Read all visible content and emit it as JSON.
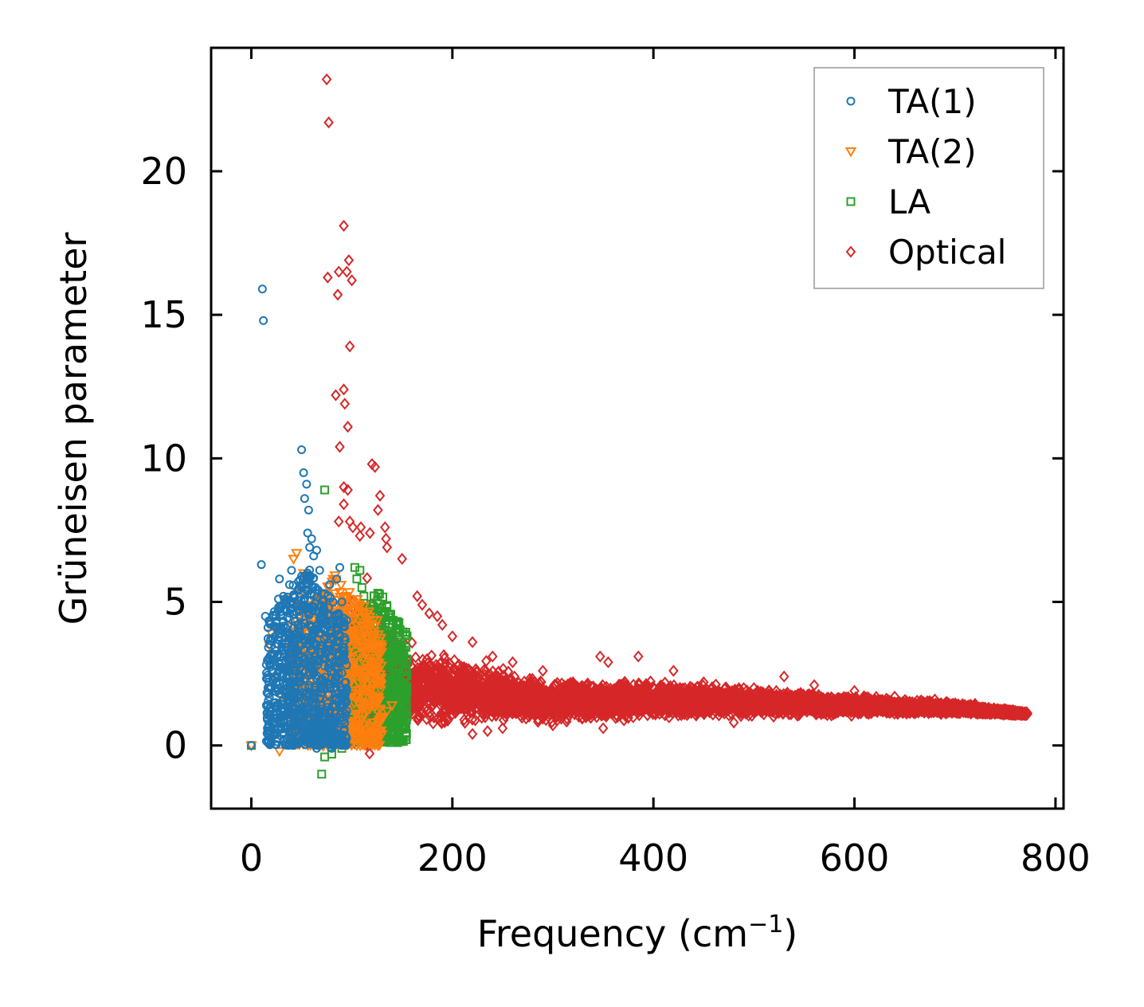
{
  "chart_data": {
    "type": "scatter",
    "xlabel": "Frequency (cm",
    "xlabel_sup": "−1",
    "xlabel_close": ")",
    "ylabel": "Grüneisen parameter",
    "xlim": [
      -40,
      808
    ],
    "ylim": [
      -2.2,
      24.3
    ],
    "xticks": [
      0,
      200,
      400,
      600,
      800
    ],
    "xtick_labels": [
      "0",
      "200",
      "400",
      "600",
      "800"
    ],
    "yticks": [
      0,
      5,
      10,
      15,
      20
    ],
    "ytick_labels": [
      "0",
      "5",
      "10",
      "15",
      "20"
    ],
    "grid": false,
    "legend_position": "top-right",
    "series": [
      {
        "name": "TA(1)",
        "marker": "circle",
        "color": "#1f77b4",
        "cluster": {
          "x_range": [
            15,
            95
          ],
          "y_range": [
            0.0,
            6.3
          ],
          "count": 900
        },
        "points": [
          [
            0,
            0
          ],
          [
            11,
            15.9
          ],
          [
            12,
            14.8
          ],
          [
            10,
            6.3
          ],
          [
            14,
            4.5
          ],
          [
            15,
            1.4
          ],
          [
            18,
            2.0
          ],
          [
            20,
            0.3
          ],
          [
            25,
            2.2
          ],
          [
            27,
            5.1
          ],
          [
            28,
            5.8
          ],
          [
            30,
            3.3
          ],
          [
            32,
            1.0
          ],
          [
            34,
            4.1
          ],
          [
            35,
            2.6
          ],
          [
            38,
            5.6
          ],
          [
            40,
            6.1
          ],
          [
            42,
            3.6
          ],
          [
            45,
            3.9
          ],
          [
            47,
            1.2
          ],
          [
            48,
            2.5
          ],
          [
            50,
            5.9
          ],
          [
            50,
            10.3
          ],
          [
            52,
            9.5
          ],
          [
            53,
            8.6
          ],
          [
            55,
            9.1
          ],
          [
            56,
            7.4
          ],
          [
            57,
            8.2
          ],
          [
            58,
            6.9
          ],
          [
            60,
            7.2
          ],
          [
            62,
            6.6
          ],
          [
            65,
            6.8
          ],
          [
            68,
            6.1
          ],
          [
            70,
            5.3
          ],
          [
            72,
            4.8
          ],
          [
            75,
            4.2
          ],
          [
            78,
            5.6
          ],
          [
            80,
            3.1
          ],
          [
            83,
            4.5
          ],
          [
            85,
            5.8
          ],
          [
            88,
            6.2
          ],
          [
            90,
            5.0
          ],
          [
            92,
            3.4
          ],
          [
            94,
            2.2
          ],
          [
            95,
            1.2
          ],
          [
            80,
            -0.1
          ],
          [
            65,
            -0.1
          ]
        ]
      },
      {
        "name": "TA(2)",
        "marker": "triangle-down",
        "color": "#ff7f0e",
        "cluster": {
          "x_range": [
            40,
            130
          ],
          "y_range": [
            0.0,
            6.0
          ],
          "count": 900
        },
        "points": [
          [
            0,
            0
          ],
          [
            18,
            3.5
          ],
          [
            20,
            3.9
          ],
          [
            25,
            2.4
          ],
          [
            27,
            0.8
          ],
          [
            28,
            -0.2
          ],
          [
            30,
            1.7
          ],
          [
            33,
            5.1
          ],
          [
            36,
            3.6
          ],
          [
            40,
            2.9
          ],
          [
            42,
            6.5
          ],
          [
            45,
            6.7
          ],
          [
            48,
            4.8
          ],
          [
            50,
            5.3
          ],
          [
            52,
            6.0
          ],
          [
            55,
            3.2
          ],
          [
            60,
            1.5
          ],
          [
            70,
            0.5
          ],
          [
            80,
            0.2
          ],
          [
            95,
            0.6
          ],
          [
            100,
            2.5
          ],
          [
            105,
            3.6
          ],
          [
            110,
            4.2
          ],
          [
            115,
            3.8
          ],
          [
            120,
            2.6
          ],
          [
            125,
            1.5
          ],
          [
            130,
            1.0
          ],
          [
            135,
            1.2
          ],
          [
            140,
            1.4
          ],
          [
            122,
            0.8
          ]
        ]
      },
      {
        "name": "LA",
        "marker": "square",
        "color": "#2ca02c",
        "cluster": {
          "x_range": [
            95,
            155
          ],
          "y_range": [
            0.1,
            5.5
          ],
          "count": 700
        },
        "points": [
          [
            0,
            0
          ],
          [
            70,
            -1.0
          ],
          [
            73,
            -0.4
          ],
          [
            73,
            8.9
          ],
          [
            80,
            -0.3
          ],
          [
            90,
            -0.1
          ],
          [
            100,
            0.2
          ],
          [
            103,
            6.2
          ],
          [
            105,
            5.8
          ],
          [
            108,
            6.1
          ],
          [
            110,
            5.5
          ],
          [
            112,
            5.2
          ],
          [
            115,
            4.5
          ],
          [
            118,
            4.0
          ],
          [
            120,
            3.7
          ],
          [
            125,
            3.0
          ],
          [
            128,
            2.6
          ],
          [
            130,
            2.1
          ],
          [
            135,
            1.7
          ],
          [
            140,
            1.4
          ],
          [
            145,
            1.2
          ],
          [
            150,
            1.1
          ],
          [
            155,
            1.0
          ],
          [
            125,
            0.5
          ],
          [
            135,
            0.3
          ]
        ]
      },
      {
        "name": "Optical",
        "marker": "diamond",
        "color": "#d62728",
        "cluster": {
          "x_range": [
            100,
            772
          ],
          "y_center": [
            [
              100,
              3.0
            ],
            [
              150,
              2.0
            ],
            [
              200,
              1.9
            ],
            [
              300,
              1.5
            ],
            [
              400,
              1.6
            ],
            [
              500,
              1.5
            ],
            [
              600,
              1.4
            ],
            [
              700,
              1.3
            ],
            [
              772,
              1.1
            ]
          ],
          "y_spread": [
            [
              100,
              5.6
            ],
            [
              150,
              2.4
            ],
            [
              200,
              1.8
            ],
            [
              300,
              1.1
            ],
            [
              400,
              0.9
            ],
            [
              500,
              0.7
            ],
            [
              600,
              0.5
            ],
            [
              700,
              0.3
            ],
            [
              772,
              0.1
            ]
          ],
          "count": 7000
        },
        "points": [
          [
            75,
            23.2
          ],
          [
            77,
            21.7
          ],
          [
            92,
            18.1
          ],
          [
            76,
            16.3
          ],
          [
            87,
            16.5
          ],
          [
            97,
            16.9
          ],
          [
            95,
            16.5
          ],
          [
            100,
            16.2
          ],
          [
            86,
            15.7
          ],
          [
            98,
            13.9
          ],
          [
            84,
            12.2
          ],
          [
            92,
            12.4
          ],
          [
            93,
            11.9
          ],
          [
            96,
            11.1
          ],
          [
            88,
            10.4
          ],
          [
            120,
            9.8
          ],
          [
            123,
            9.7
          ],
          [
            92,
            9.0
          ],
          [
            96,
            8.9
          ],
          [
            128,
            8.7
          ],
          [
            92,
            8.4
          ],
          [
            126,
            8.2
          ],
          [
            87,
            7.8
          ],
          [
            98,
            7.8
          ],
          [
            101,
            7.6
          ],
          [
            109,
            7.6
          ],
          [
            118,
            7.4
          ],
          [
            133,
            7.6
          ],
          [
            108,
            7.3
          ],
          [
            134,
            7.2
          ],
          [
            135,
            6.9
          ],
          [
            150,
            6.5
          ],
          [
            165,
            5.2
          ],
          [
            170,
            4.9
          ],
          [
            177,
            4.6
          ],
          [
            185,
            4.5
          ],
          [
            190,
            4.2
          ],
          [
            200,
            3.8
          ],
          [
            220,
            3.6
          ],
          [
            240,
            3.1
          ],
          [
            260,
            2.9
          ],
          [
            290,
            2.6
          ],
          [
            320,
            2.2
          ],
          [
            347,
            3.1
          ],
          [
            355,
            2.9
          ],
          [
            385,
            3.1
          ],
          [
            420,
            2.6
          ],
          [
            450,
            2.2
          ],
          [
            480,
            0.8
          ],
          [
            500,
            2.0
          ],
          [
            530,
            2.4
          ],
          [
            560,
            2.1
          ],
          [
            600,
            1.9
          ],
          [
            640,
            1.7
          ],
          [
            680,
            1.6
          ],
          [
            720,
            1.45
          ],
          [
            760,
            1.2
          ],
          [
            772,
            1.1
          ],
          [
            220,
            0.4
          ],
          [
            235,
            0.5
          ],
          [
            250,
            0.6
          ],
          [
            300,
            0.7
          ],
          [
            350,
            0.6
          ]
        ]
      }
    ]
  }
}
